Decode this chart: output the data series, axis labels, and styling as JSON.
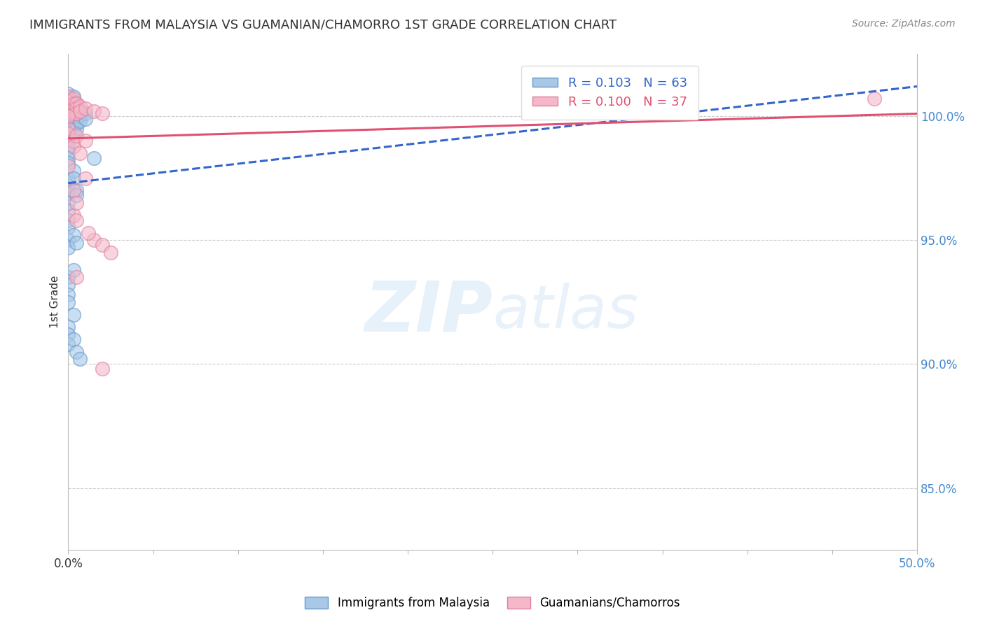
{
  "title": "IMMIGRANTS FROM MALAYSIA VS GUAMANIAN/CHAMORRO 1ST GRADE CORRELATION CHART",
  "source": "Source: ZipAtlas.com",
  "ylabel": "1st Grade",
  "xlim": [
    0.0,
    50.0
  ],
  "ylim": [
    82.5,
    102.5
  ],
  "ytick_values": [
    85.0,
    90.0,
    95.0,
    100.0
  ],
  "ytick_labels": [
    "85.0%",
    "90.0%",
    "95.0%",
    "100.0%"
  ],
  "xtick_values": [
    0.0,
    5.0,
    10.0,
    15.0,
    20.0,
    25.0,
    30.0,
    35.0,
    40.0,
    45.0,
    50.0
  ],
  "legend_bottom_labels": [
    "Immigrants from Malaysia",
    "Guamanians/Chamorros"
  ],
  "blue_scatter": [
    [
      0.0,
      100.9
    ],
    [
      0.0,
      100.7
    ],
    [
      0.0,
      100.5
    ],
    [
      0.0,
      100.3
    ],
    [
      0.0,
      100.1
    ],
    [
      0.0,
      99.9
    ],
    [
      0.0,
      99.7
    ],
    [
      0.0,
      99.5
    ],
    [
      0.0,
      99.3
    ],
    [
      0.0,
      99.1
    ],
    [
      0.0,
      98.9
    ],
    [
      0.0,
      98.7
    ],
    [
      0.0,
      98.5
    ],
    [
      0.0,
      98.3
    ],
    [
      0.0,
      98.1
    ],
    [
      0.3,
      100.8
    ],
    [
      0.3,
      100.6
    ],
    [
      0.3,
      100.4
    ],
    [
      0.3,
      100.2
    ],
    [
      0.3,
      100.0
    ],
    [
      0.3,
      99.8
    ],
    [
      0.3,
      99.6
    ],
    [
      0.3,
      99.4
    ],
    [
      0.5,
      100.5
    ],
    [
      0.5,
      100.3
    ],
    [
      0.5,
      100.1
    ],
    [
      0.5,
      99.9
    ],
    [
      0.5,
      99.7
    ],
    [
      0.5,
      99.5
    ],
    [
      0.7,
      100.2
    ],
    [
      0.7,
      100.0
    ],
    [
      0.7,
      99.8
    ],
    [
      1.0,
      100.1
    ],
    [
      1.0,
      99.9
    ],
    [
      0.0,
      97.5
    ],
    [
      0.0,
      97.2
    ],
    [
      0.0,
      96.9
    ],
    [
      0.0,
      96.5
    ],
    [
      0.0,
      96.2
    ],
    [
      0.0,
      95.8
    ],
    [
      0.0,
      95.5
    ],
    [
      0.3,
      97.8
    ],
    [
      0.3,
      97.5
    ],
    [
      0.5,
      97.0
    ],
    [
      0.5,
      96.8
    ],
    [
      1.5,
      98.3
    ],
    [
      0.0,
      95.0
    ],
    [
      0.0,
      94.7
    ],
    [
      0.3,
      95.2
    ],
    [
      0.5,
      94.9
    ],
    [
      0.0,
      93.5
    ],
    [
      0.0,
      93.2
    ],
    [
      0.3,
      93.8
    ],
    [
      0.0,
      92.8
    ],
    [
      0.0,
      92.5
    ],
    [
      0.3,
      92.0
    ],
    [
      0.0,
      91.5
    ],
    [
      0.0,
      91.2
    ],
    [
      0.0,
      90.8
    ],
    [
      0.3,
      91.0
    ],
    [
      0.5,
      90.5
    ],
    [
      0.7,
      90.2
    ]
  ],
  "pink_scatter": [
    [
      0.0,
      100.8
    ],
    [
      0.0,
      100.6
    ],
    [
      0.0,
      100.4
    ],
    [
      0.0,
      100.2
    ],
    [
      0.3,
      100.7
    ],
    [
      0.3,
      100.5
    ],
    [
      0.3,
      100.3
    ],
    [
      0.3,
      100.1
    ],
    [
      0.5,
      100.5
    ],
    [
      0.5,
      100.3
    ],
    [
      0.5,
      100.1
    ],
    [
      0.7,
      100.4
    ],
    [
      0.7,
      100.2
    ],
    [
      1.0,
      100.3
    ],
    [
      1.5,
      100.2
    ],
    [
      2.0,
      100.1
    ],
    [
      0.0,
      99.5
    ],
    [
      0.0,
      99.3
    ],
    [
      0.3,
      99.0
    ],
    [
      0.3,
      98.8
    ],
    [
      0.5,
      99.2
    ],
    [
      1.0,
      99.0
    ],
    [
      1.5,
      95.0
    ],
    [
      2.0,
      94.8
    ],
    [
      1.2,
      95.3
    ],
    [
      2.5,
      94.5
    ],
    [
      2.0,
      89.8
    ],
    [
      0.5,
      93.5
    ],
    [
      0.3,
      97.0
    ],
    [
      0.0,
      98.0
    ],
    [
      0.7,
      98.5
    ],
    [
      0.3,
      96.0
    ],
    [
      0.5,
      96.5
    ],
    [
      1.0,
      97.5
    ],
    [
      0.5,
      95.8
    ],
    [
      47.5,
      100.7
    ],
    [
      0.0,
      100.0
    ]
  ],
  "blue_trend": [
    0.0,
    97.3,
    50.0,
    101.2
  ],
  "pink_trend": [
    0.0,
    99.1,
    50.0,
    100.1
  ],
  "watermark_zip": "ZIP",
  "watermark_atlas": "atlas",
  "background_color": "#ffffff",
  "grid_color": "#cccccc",
  "title_color": "#333333",
  "source_color": "#888888",
  "ytick_color": "#4488cc",
  "scatter_blue_face": "#a8c8e8",
  "scatter_blue_edge": "#6699cc",
  "scatter_pink_face": "#f4b8c8",
  "scatter_pink_edge": "#e080a0",
  "trend_blue_color": "#3366cc",
  "trend_pink_color": "#e05070"
}
